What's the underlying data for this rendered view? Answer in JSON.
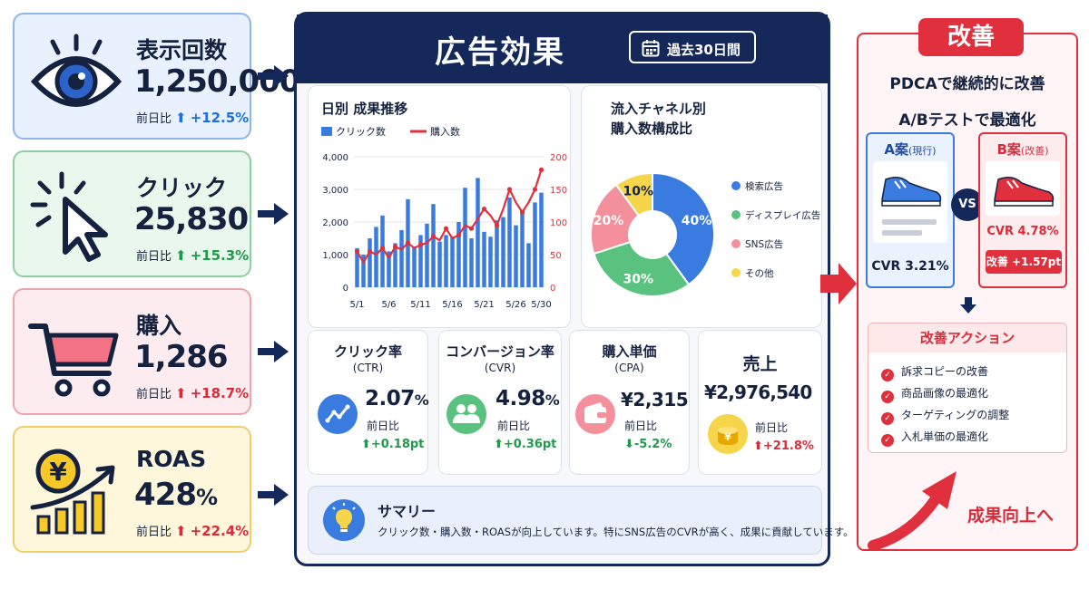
{
  "kpis": [
    {
      "label": "表示回数",
      "value": "1,250,000",
      "change_label": "前日比",
      "change": "+12.5%",
      "icon": "eye-icon"
    },
    {
      "label": "クリック",
      "value": "25,830",
      "change_label": "前日比",
      "change": "+15.3%",
      "icon": "cursor-click-icon"
    },
    {
      "label": "購入",
      "value": "1,286",
      "change_label": "前日比",
      "change": "+18.7%",
      "icon": "cart-icon"
    },
    {
      "label": "ROAS",
      "value": "428",
      "value_unit": "%",
      "change_label": "前日比",
      "change": "+22.4%",
      "icon": "yen-growth-icon"
    }
  ],
  "panel": {
    "title": "広告効果",
    "period": "過去30日間"
  },
  "chart_data": [
    {
      "type": "bar",
      "title": "日別 成果推移",
      "legend": [
        "クリック数",
        "購入数"
      ],
      "x_tick_labels": [
        "5/1",
        "5/6",
        "5/11",
        "5/16",
        "5/21",
        "5/26",
        "5/30"
      ],
      "y_left_ticks": [
        "4,000",
        "3,000",
        "2,000",
        "1,000",
        "0"
      ],
      "y_right_ticks": [
        "200",
        "150",
        "100",
        "50",
        "0"
      ],
      "ylim_left": [
        0,
        4000
      ],
      "ylim_right": [
        0,
        200
      ],
      "series": [
        {
          "name": "クリック数",
          "type": "bar",
          "axis": "left",
          "values": [
            1200,
            1000,
            1500,
            1850,
            2200,
            1100,
            1350,
            1750,
            2700,
            1250,
            1600,
            1950,
            2550,
            1400,
            1600,
            1550,
            2000,
            3050,
            1500,
            3350,
            1700,
            1550,
            2050,
            2150,
            2750,
            1900,
            2350,
            1350,
            2600,
            2900
          ]
        },
        {
          "name": "購入数",
          "type": "line",
          "axis": "right",
          "values": [
            55,
            38,
            55,
            50,
            60,
            45,
            62,
            58,
            68,
            60,
            65,
            68,
            78,
            72,
            90,
            75,
            80,
            95,
            90,
            105,
            120,
            110,
            95,
            120,
            150,
            130,
            115,
            130,
            150,
            180
          ]
        }
      ]
    },
    {
      "type": "pie",
      "title_lines": [
        "流入チャネル別",
        "購入数構成比"
      ],
      "labels": [
        "検索広告",
        "ディスプレイ広告",
        "SNS広告",
        "その他"
      ],
      "values": [
        40,
        30,
        20,
        10
      ],
      "value_labels": [
        "40%",
        "30%",
        "20%",
        "10%"
      ],
      "colors": [
        "#3a7be0",
        "#5ac27f",
        "#f48f9c",
        "#f6d54a"
      ],
      "donut": true,
      "legend_position": "right"
    }
  ],
  "metrics": [
    {
      "title": "クリック率",
      "sub": "(CTR)",
      "value": "2.07",
      "unit": "%",
      "change_label": "前日比",
      "change": "+0.18pt",
      "direction": "up",
      "icon": "trend-line-icon"
    },
    {
      "title": "コンバージョン率",
      "sub": "(CVR)",
      "value": "4.98",
      "unit": "%",
      "change_label": "前日比",
      "change": "+0.36pt",
      "direction": "up",
      "icon": "users-icon"
    },
    {
      "title": "購入単価",
      "sub": "(CPA)",
      "value": "¥2,315",
      "unit": "",
      "change_label": "前日比",
      "change": "-5.2%",
      "direction": "down",
      "icon": "wallet-icon"
    },
    {
      "title": "売上",
      "sub": "",
      "value": "¥2,976,540",
      "unit": "",
      "change_label": "前日比",
      "change": "+21.8%",
      "direction": "up",
      "icon": "yen-coins-icon"
    }
  ],
  "summary": {
    "title": "サマリー",
    "body": "クリック数・購入数・ROASが向上しています。特にSNS広告のCVRが高く、成果に貢献しています。",
    "icon": "lightbulb-icon"
  },
  "improve": {
    "tag": "改善",
    "line1": "PDCAで継続的に改善",
    "line2": "A/Bテストで最適化",
    "a": {
      "name": "A案",
      "note": "(現行)",
      "cvr": "CVR 3.21%",
      "color": "#3a7be0"
    },
    "vs": "VS",
    "b": {
      "name": "B案",
      "note": "(改善)",
      "cvr": "CVR 4.78%",
      "lift": "改善 +1.57pt",
      "color": "#e0303d"
    },
    "actions_title": "改善アクション",
    "actions": [
      "訴求コピーの改善",
      "商品画像の最適化",
      "ターゲティングの調整",
      "入札単価の最適化"
    ],
    "goal": "成果向上へ"
  }
}
